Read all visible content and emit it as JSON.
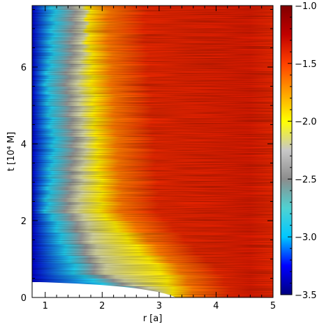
{
  "chart_data": {
    "type": "heatmap",
    "title": "",
    "xlabel": "r [a]",
    "ylabel": "t [10⁴ M]",
    "xlim": [
      0.77,
      5.0
    ],
    "ylim": [
      0,
      7.6
    ],
    "x_ticks": [
      {
        "value": 1,
        "label": "1"
      },
      {
        "value": 2,
        "label": "2"
      },
      {
        "value": 3,
        "label": "3"
      },
      {
        "value": 4,
        "label": "4"
      },
      {
        "value": 5,
        "label": "5"
      }
    ],
    "y_ticks": [
      {
        "value": 0,
        "label": "0"
      },
      {
        "value": 2,
        "label": "2"
      },
      {
        "value": 4,
        "label": "4"
      },
      {
        "value": 6,
        "label": "6"
      }
    ],
    "colorbar": {
      "range": [
        -3.5,
        -1.0
      ],
      "colormap": [
        "#000080",
        "#0000ff",
        "#00c8ff",
        "#50d2d2",
        "#8c8c8c",
        "#c8c8c8",
        "#ffff00",
        "#ffa000",
        "#ff4000",
        "#c00000",
        "#800000"
      ],
      "ticks": [
        {
          "value": -1.0,
          "label": "−1.0"
        },
        {
          "value": -1.5,
          "label": "−1.5"
        },
        {
          "value": -2.0,
          "label": "−2.0"
        },
        {
          "value": -2.5,
          "label": "−2.5"
        },
        {
          "value": -3.0,
          "label": "−3.0"
        },
        {
          "value": -3.5,
          "label": "−3.5"
        }
      ]
    },
    "features": {
      "empty_region_color": "#ffffff",
      "inner_edge_r_bottom": 3.3,
      "inner_edge_t_bottom": 0.2,
      "inner_edge_t_top": 0.4,
      "inner_edge_r_top": 0.9
    }
  }
}
